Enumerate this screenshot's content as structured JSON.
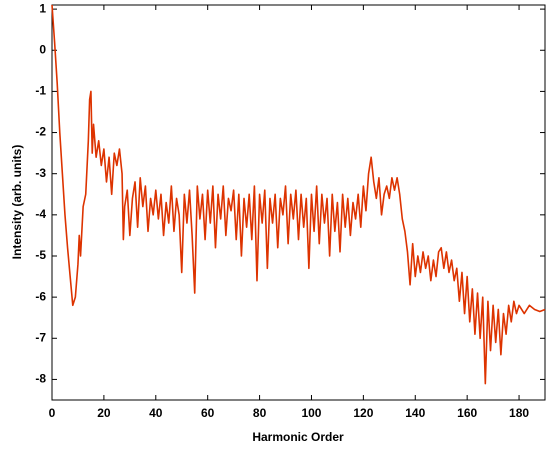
{
  "chart_data": {
    "type": "line",
    "xlabel": "Harmonic Order",
    "ylabel": "Intensity (arb. units)",
    "xlim": [
      0,
      190
    ],
    "xticks": [
      0,
      20,
      40,
      60,
      80,
      100,
      120,
      140,
      160,
      180
    ],
    "ylim": [
      -8.5,
      1.1
    ],
    "yticks": [
      1,
      0,
      -1,
      -2,
      -3,
      -4,
      -5,
      -6,
      -7,
      -8
    ],
    "grid": false,
    "x": [
      0,
      1,
      2,
      3,
      4,
      5,
      6,
      7,
      8,
      9,
      10,
      10.5,
      11,
      12,
      13,
      14,
      14.5,
      15,
      15.5,
      16,
      17,
      18,
      19,
      20,
      21,
      22,
      23,
      24,
      25,
      26,
      27,
      27.5,
      28,
      29,
      30,
      31,
      32,
      33,
      34,
      35,
      36,
      37,
      38,
      39,
      40,
      41,
      42,
      43,
      44,
      45,
      46,
      47,
      48,
      49,
      50,
      51,
      52,
      53,
      54,
      55,
      56,
      57,
      58,
      59,
      60,
      61,
      62,
      63,
      64,
      65,
      66,
      67,
      68,
      69,
      70,
      71,
      72,
      73,
      74,
      75,
      76,
      77,
      78,
      79,
      80,
      81,
      82,
      83,
      84,
      85,
      86,
      87,
      88,
      89,
      90,
      91,
      92,
      93,
      94,
      95,
      96,
      97,
      98,
      99,
      100,
      101,
      102,
      103,
      104,
      105,
      106,
      107,
      108,
      109,
      110,
      111,
      112,
      113,
      114,
      115,
      116,
      117,
      118,
      119,
      120,
      121,
      122,
      123,
      124,
      125,
      126,
      127,
      128,
      129,
      130,
      131,
      132,
      133,
      134,
      135,
      136,
      137,
      138,
      139,
      140,
      141,
      142,
      143,
      144,
      145,
      146,
      147,
      148,
      149,
      150,
      151,
      152,
      153,
      154,
      155,
      156,
      157,
      158,
      159,
      160,
      161,
      162,
      163,
      164,
      165,
      166,
      167,
      168,
      169,
      170,
      171,
      172,
      173,
      174,
      175,
      176,
      177,
      178,
      179,
      180,
      182,
      184,
      186,
      188,
      190
    ],
    "series": [
      {
        "color": "#dd3300",
        "values": [
          1.1,
          0.2,
          -0.8,
          -2,
          -3,
          -4,
          -4.8,
          -5.5,
          -6.2,
          -6,
          -5.2,
          -4.5,
          -5,
          -3.8,
          -3.5,
          -2.2,
          -1.2,
          -1,
          -2.5,
          -1.8,
          -2.6,
          -2.2,
          -2.8,
          -2.4,
          -3.2,
          -2.6,
          -3.5,
          -2.5,
          -2.8,
          -2.4,
          -3,
          -4.6,
          -3.8,
          -3.4,
          -4.5,
          -3.6,
          -3.2,
          -4.3,
          -3.1,
          -3.8,
          -3.3,
          -4.4,
          -3.6,
          -4,
          -3.4,
          -4.1,
          -3.5,
          -4.5,
          -3.7,
          -4.2,
          -3.3,
          -4.4,
          -3.6,
          -4,
          -5.4,
          -3.5,
          -4.2,
          -3.4,
          -4.5,
          -5.9,
          -3.3,
          -4.1,
          -3.5,
          -4.6,
          -3.4,
          -4.2,
          -3.3,
          -4.8,
          -3.5,
          -4.1,
          -3.3,
          -4.5,
          -3.6,
          -3.9,
          -3.4,
          -4.6,
          -3.5,
          -5,
          -3.6,
          -4.3,
          -3.5,
          -4.6,
          -3.3,
          -5.6,
          -3.5,
          -4.2,
          -3.4,
          -5.3,
          -3.6,
          -4.2,
          -3.5,
          -4.8,
          -3.6,
          -4,
          -3.3,
          -4.7,
          -3.5,
          -4.1,
          -3.4,
          -4.6,
          -3.5,
          -4.3,
          -3.6,
          -5.3,
          -3.5,
          -4.4,
          -3.3,
          -4.7,
          -3.5,
          -4.2,
          -3.6,
          -5,
          -3.5,
          -4.4,
          -3.7,
          -4.9,
          -3.5,
          -4.3,
          -3.6,
          -4.5,
          -3.7,
          -4.1,
          -3.5,
          -4.3,
          -3.3,
          -3.9,
          -3,
          -2.6,
          -3.2,
          -3.6,
          -3.1,
          -4,
          -3.5,
          -3.3,
          -3.6,
          -3.1,
          -3.4,
          -3.1,
          -3.5,
          -4.1,
          -4.4,
          -4.9,
          -5.7,
          -4.7,
          -5.5,
          -5,
          -5.4,
          -4.9,
          -5.3,
          -5,
          -5.6,
          -5.1,
          -5.5,
          -4.9,
          -4.8,
          -5.3,
          -4.9,
          -5.4,
          -5.1,
          -5.6,
          -5.3,
          -6.1,
          -5.4,
          -6.4,
          -5.5,
          -6.6,
          -5.8,
          -6.9,
          -5.9,
          -7,
          -6,
          -8.1,
          -6.1,
          -7.3,
          -6.2,
          -7.1,
          -6.3,
          -7.4,
          -6.4,
          -6.9,
          -6.2,
          -6.6,
          -6.1,
          -6.4,
          -6.2,
          -6.4,
          -6.2,
          -6.3,
          -6.35,
          -6.3
        ]
      }
    ]
  }
}
